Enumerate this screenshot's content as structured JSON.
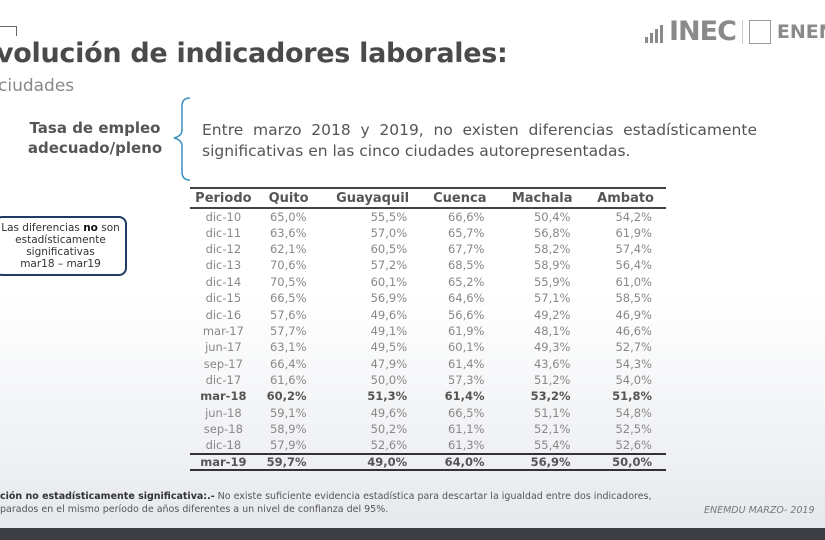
{
  "header": {
    "title": "volución de indicadores laborales:",
    "subtitle": "ciudades",
    "logo": "INEC",
    "logo2": "ENEM"
  },
  "indicator": {
    "label_line1": "Tasa de empleo",
    "label_line2": "adecuado/pleno",
    "description": "Entre marzo 2018 y 2019, no existen diferencias estadísticamente significativas en las cinco ciudades autorepresentadas."
  },
  "note": {
    "part1": "Las diferencias ",
    "bold": "no",
    "part2": " son estadísticamente significativas",
    "line2": "mar18 – mar19",
    "border_color": "#1f3b63"
  },
  "table": {
    "columns": [
      "Periodo",
      "Quito",
      "Guayaquil",
      "Cuenca",
      "Machala",
      "Ambato"
    ],
    "rows": [
      [
        "dic-10",
        "65,0%",
        "55,5%",
        "66,6%",
        "50,4%",
        "54,2%"
      ],
      [
        "dic-11",
        "63,6%",
        "57,0%",
        "65,7%",
        "56,8%",
        "61,9%"
      ],
      [
        "dic-12",
        "62,1%",
        "60,5%",
        "67,7%",
        "58,2%",
        "57,4%"
      ],
      [
        "dic-13",
        "70,6%",
        "57,2%",
        "68,5%",
        "58,9%",
        "56,4%"
      ],
      [
        "dic-14",
        "70,5%",
        "60,1%",
        "65,2%",
        "55,9%",
        "61,0%"
      ],
      [
        "dic-15",
        "66,5%",
        "56,9%",
        "64,6%",
        "57,1%",
        "58,5%"
      ],
      [
        "dic-16",
        "57,6%",
        "49,6%",
        "56,6%",
        "49,2%",
        "46,9%"
      ],
      [
        "mar-17",
        "57,7%",
        "49,1%",
        "61,9%",
        "48,1%",
        "46,6%"
      ],
      [
        "jun-17",
        "63,1%",
        "49,5%",
        "60,1%",
        "49,3%",
        "52,7%"
      ],
      [
        "sep-17",
        "66,4%",
        "47,9%",
        "61,4%",
        "43,6%",
        "54,3%"
      ],
      [
        "dic-17",
        "61,6%",
        "50,0%",
        "57,3%",
        "51,2%",
        "54,0%"
      ],
      [
        "mar-18",
        "60,2%",
        "51,3%",
        "61,4%",
        "53,2%",
        "51,8%"
      ],
      [
        "jun-18",
        "59,1%",
        "49,6%",
        "66,5%",
        "51,1%",
        "54,8%"
      ],
      [
        "sep-18",
        "58,9%",
        "50,2%",
        "61,1%",
        "52,1%",
        "52,5%"
      ],
      [
        "dic-18",
        "57,9%",
        "52,6%",
        "61,3%",
        "55,4%",
        "52,6%"
      ],
      [
        "mar-19",
        "59,7%",
        "49,0%",
        "64,0%",
        "56,9%",
        "50,0%"
      ]
    ],
    "bold_rows": [
      "mar-18",
      "mar-19"
    ]
  },
  "footer": {
    "bold": "ción no estadísticamente significativa:.-",
    "text1": " No existe suficiente evidencia estadística para descartar la igualdad entre dos indicadores,",
    "text2": "parados en el mismo período de años diferentes a un nivel de confianza del 95%.",
    "source": "ENEMDU MARZO- 2019"
  }
}
